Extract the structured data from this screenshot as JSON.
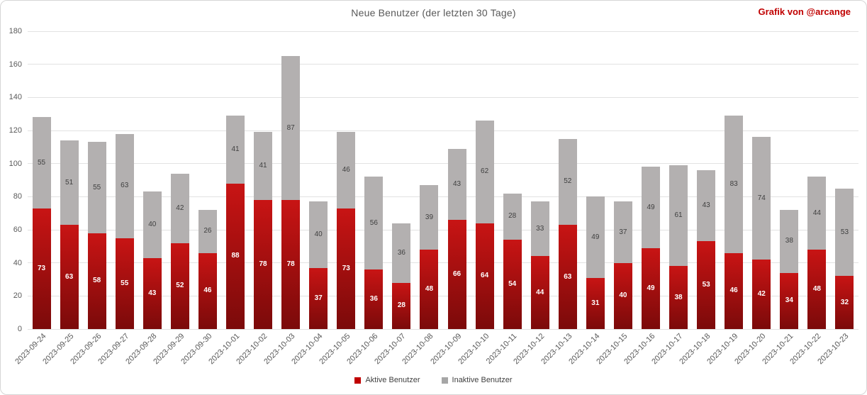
{
  "title": "Neue Benutzer (der letzten 30 Tage)",
  "credit": "Grafik von @arcange",
  "colors": {
    "credit": "#c00000",
    "active_gradient_top": "#c81414",
    "active_gradient_bottom": "#7b0a0a",
    "inactive_fill": "#b3b0b0",
    "legend_active_swatch": "#c00000",
    "legend_inactive_swatch": "#a6a6a6",
    "gridline": "#e2e2e2",
    "axis_text": "#595959"
  },
  "legend": {
    "active": "Aktive Benutzer",
    "inactive": "Inaktive Benutzer"
  },
  "chart_data": {
    "type": "bar",
    "stacked": true,
    "title": "Neue Benutzer (der letzten 30 Tage)",
    "xlabel": "",
    "ylabel": "",
    "ylim": [
      0,
      180
    ],
    "yticks": [
      0,
      20,
      40,
      60,
      80,
      100,
      120,
      140,
      160,
      180
    ],
    "grid": true,
    "legend_position": "bottom",
    "categories": [
      "2023-09-24",
      "2023-09-25",
      "2023-09-26",
      "2023-09-27",
      "2023-09-28",
      "2023-09-29",
      "2023-09-30",
      "2023-10-01",
      "2023-10-02",
      "2023-10-03",
      "2023-10-04",
      "2023-10-05",
      "2023-10-06",
      "2023-10-07",
      "2023-10-08",
      "2023-10-09",
      "2023-10-10",
      "2023-10-11",
      "2023-10-12",
      "2023-10-13",
      "2023-10-14",
      "2023-10-15",
      "2023-10-16",
      "2023-10-17",
      "2023-10-18",
      "2023-10-19",
      "2023-10-20",
      "2023-10-21",
      "2023-10-22",
      "2023-10-23"
    ],
    "series": [
      {
        "name": "Aktive Benutzer",
        "color": "#c00000",
        "values": [
          73,
          63,
          58,
          55,
          43,
          52,
          46,
          88,
          78,
          78,
          37,
          73,
          36,
          28,
          48,
          66,
          64,
          54,
          44,
          63,
          31,
          40,
          49,
          38,
          53,
          46,
          42,
          34,
          48,
          32
        ]
      },
      {
        "name": "Inaktive Benutzer",
        "color": "#b3b0b0",
        "values": [
          55,
          51,
          55,
          63,
          40,
          42,
          26,
          41,
          41,
          87,
          40,
          46,
          56,
          36,
          39,
          43,
          62,
          28,
          33,
          52,
          49,
          37,
          49,
          61,
          43,
          83,
          74,
          38,
          44,
          53
        ]
      }
    ]
  }
}
